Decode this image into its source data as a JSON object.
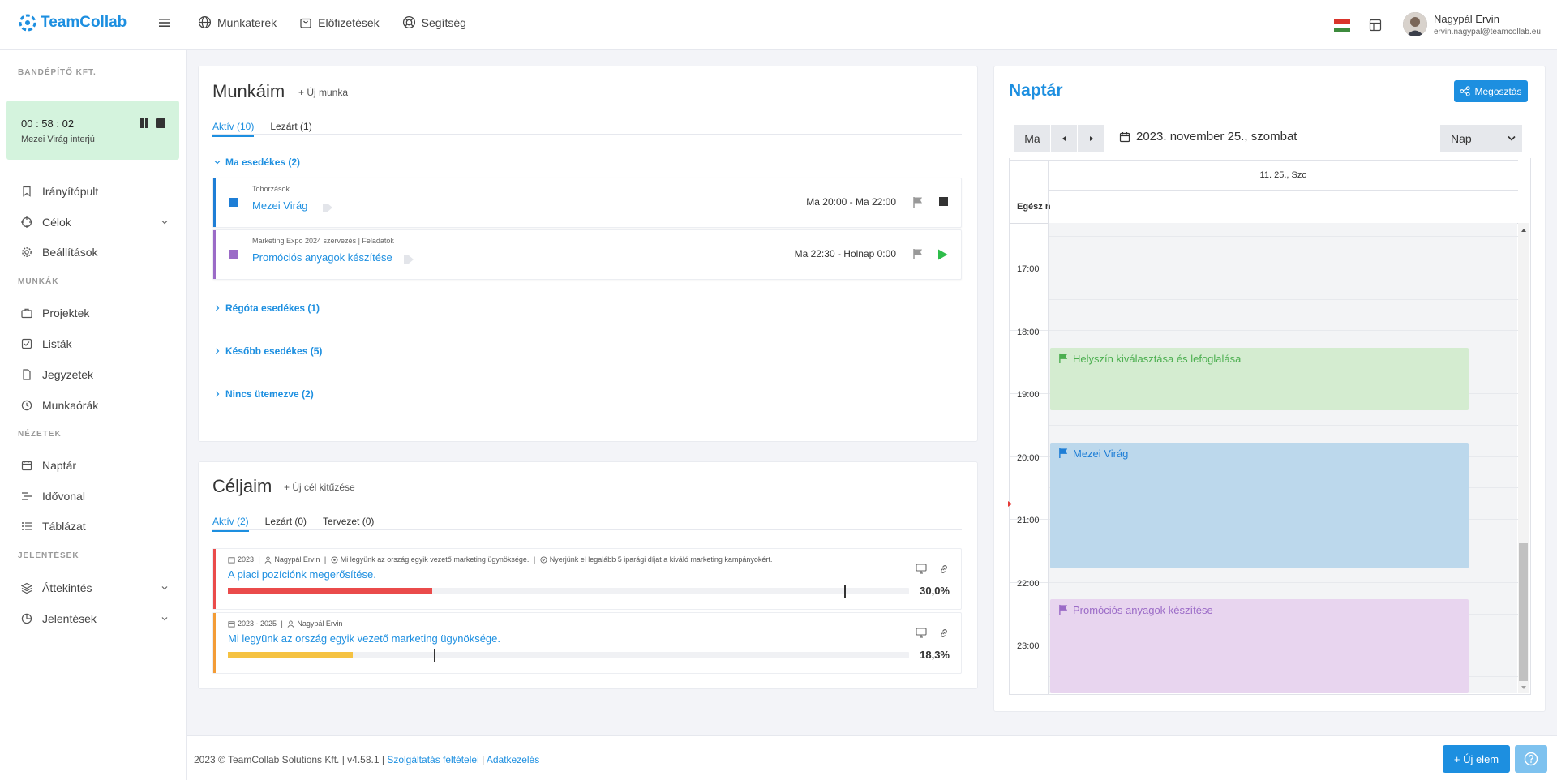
{
  "app": {
    "logo_text": "TeamCollab"
  },
  "topnav": [
    {
      "label": "Munkaterek",
      "icon": "globe-icon"
    },
    {
      "label": "Előfizetések",
      "icon": "bag-icon"
    },
    {
      "label": "Segítség",
      "icon": "lifebuoy-icon"
    }
  ],
  "user": {
    "name": "Nagypál Ervin",
    "email": "ervin.nagypal@teamcollab.eu"
  },
  "sidebar": {
    "company": "BANDÉPÍTŐ KFT.",
    "timer": {
      "time": "00 : 58 : 02",
      "task": "Mezei Virág interjú"
    },
    "items_top": [
      "Irányítópult",
      "Célok",
      "Beállítások"
    ],
    "section_work": "MUNKÁK",
    "items_work": [
      "Projektek",
      "Listák",
      "Jegyzetek",
      "Munkaórák"
    ],
    "section_views": "NÉZETEK",
    "items_views": [
      "Naptár",
      "Idővonal",
      "Táblázat"
    ],
    "section_reports": "JELENTÉSEK",
    "items_reports": [
      "Áttekintés",
      "Jelentések"
    ]
  },
  "munkaim": {
    "title": "Munkáim",
    "add": "+ Új munka",
    "tabs": [
      "Aktív (10)",
      "Lezárt (1)"
    ],
    "group_today": "Ma esedékes (2)",
    "tasks": [
      {
        "project": "Toborzások",
        "name": "Mezei Virág",
        "time": "Ma 20:00 - Ma 22:00",
        "color": "#1e7ed6"
      },
      {
        "project": "Marketing Expo 2024 szervezés  |  Feladatok",
        "name": "Promóciós anyagok készítése",
        "time": "Ma 22:30 - Holnap 0:00",
        "color": "#9b6bc7"
      }
    ],
    "groups_collapsed": [
      "Régóta esedékes (1)",
      "Később esedékes (5)",
      "Nincs ütemezve (2)"
    ]
  },
  "celjaim": {
    "title": "Céljaim",
    "add": "+ Új cél kitűzése",
    "tabs": [
      "Aktív (2)",
      "Lezárt (0)",
      "Tervezet (0)"
    ],
    "goals": [
      {
        "year": "2023",
        "owner": "Nagypál Ervin",
        "parent": "Mi legyünk az ország egyik vezető marketing ügynöksége.",
        "kr": "Nyerjünk el legalább 5 iparági díjat a kiváló marketing kampányokért.",
        "name": "A piaci pozíciónk megerősítése.",
        "progress": 0.3,
        "marker": 0.905,
        "pct": "30,0%",
        "color": "#ea4b4b"
      },
      {
        "year": "2023 - 2025",
        "owner": "Nagypál Ervin",
        "name": "Mi legyünk az ország egyik vezető marketing ügynöksége.",
        "progress": 0.183,
        "marker": 0.302,
        "pct": "18,3%",
        "color": "#f5c242"
      }
    ]
  },
  "calendar": {
    "title": "Naptár",
    "share": "Megosztás",
    "today_btn": "Ma",
    "date": "2023. november 25., szombat",
    "view": "Nap",
    "day_header": "11. 25., Szo",
    "allday": "Egész n",
    "hours": [
      "17:00",
      "18:00",
      "19:00",
      "20:00",
      "21:00",
      "22:00",
      "23:00"
    ],
    "events": [
      {
        "title": "Helyszín kiválasztása és lefoglalása",
        "color": "#4caf50"
      },
      {
        "title": "Mezei Virág",
        "color": "#1e7ed6"
      },
      {
        "title": "Promóciós anyagok készítése",
        "color": "#9b6bc7"
      }
    ]
  },
  "footer": {
    "text": "2023 © TeamCollab Solutions Kft. | v4.58.1 | ",
    "terms": "Szolgáltatás feltételei",
    "sep": " | ",
    "privacy": "Adatkezelés"
  },
  "new_item": "+ Új elem"
}
